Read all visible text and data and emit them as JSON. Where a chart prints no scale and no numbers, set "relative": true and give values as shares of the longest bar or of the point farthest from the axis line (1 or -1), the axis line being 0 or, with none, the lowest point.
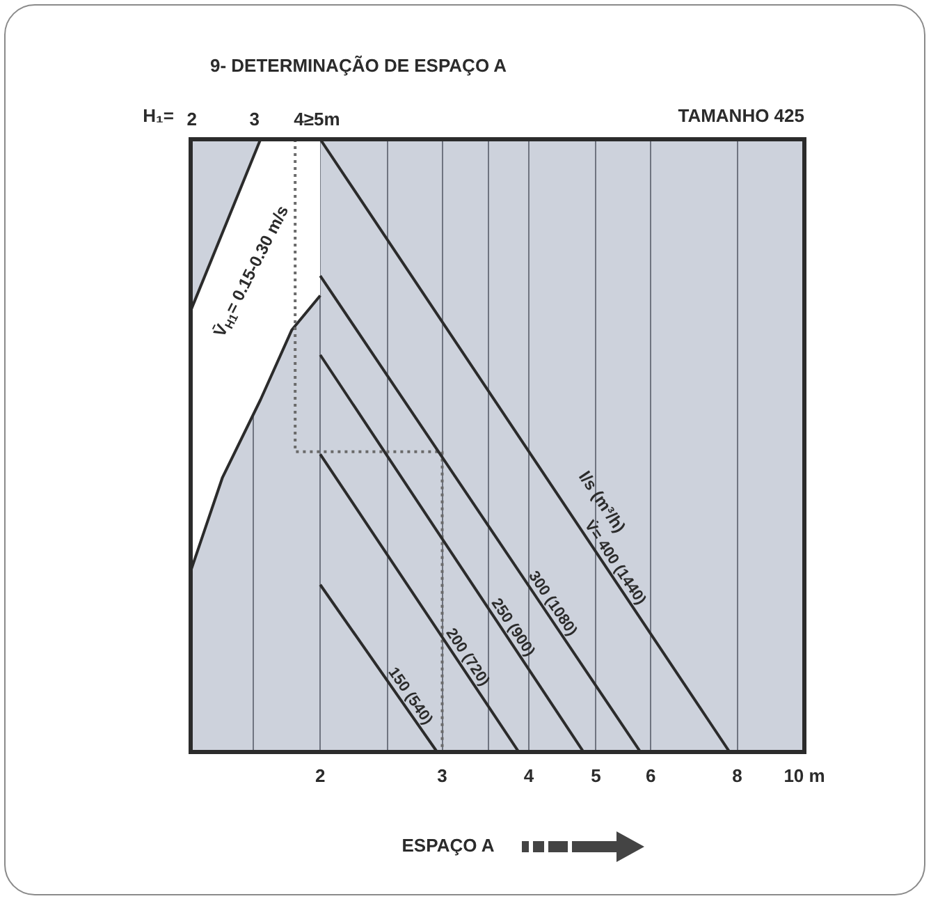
{
  "chart_data": {
    "type": "line",
    "title": "9- DETERMINAÇÃO DE ESPAÇO A",
    "subtitle": "TAMANHO 425",
    "xlabel": "ESPAÇO A",
    "x2label": "H₁=",
    "relative": true,
    "log": "x",
    "grid": "x",
    "legend": false,
    "marker": "none",
    "line_style": "solid",
    "xlim": [
      1.3,
      10
    ],
    "xticks": [
      {
        "value": 1.6,
        "label": null
      },
      2,
      {
        "value": 2.5,
        "label": null
      },
      3,
      {
        "value": 3.5,
        "label": null
      },
      4,
      5,
      6,
      8,
      {
        "value": 10,
        "label": "10 m"
      }
    ],
    "x2lim": [
      1.98,
      11.8
    ],
    "x2ticks": [
      2,
      3,
      {
        "value": 4,
        "label": "4≥5m"
      }
    ],
    "series": [
      {
        "type": "area",
        "color": "#ffffff",
        "x": [
          1.3,
          1.3,
          1.445,
          1.64,
          1.82,
          2,
          2
        ],
        "values": [
          1,
          0.295,
          0.448,
          0.575,
          0.689,
          0.745,
          1
        ]
      },
      {
        "type": "area",
        "color": "#cdd2dc",
        "x": [
          1.3,
          1.64
        ],
        "values": [
          0.72,
          1
        ]
      },
      {
        "type": "line",
        "color": "#6a6a6a",
        "line_style": "dotted",
        "x": [
          1.84,
          1.84,
          3,
          3
        ],
        "values": [
          1,
          0.49,
          0.49,
          0
        ]
      },
      {
        "name": "V̇= 400 (1440)",
        "color": "#2b2b2b",
        "x": [
          2,
          7.8
        ],
        "values": [
          1,
          0
        ]
      },
      {
        "name": "300 (1080)",
        "color": "#2b2b2b",
        "x": [
          2,
          5.8
        ],
        "values": [
          0.777,
          0
        ]
      },
      {
        "name": "250 (900)",
        "color": "#2b2b2b",
        "x": [
          2,
          4.8
        ],
        "values": [
          0.648,
          0
        ]
      },
      {
        "name": "200 (720)",
        "color": "#2b2b2b",
        "x": [
          2,
          3.87
        ],
        "values": [
          0.486,
          0
        ]
      },
      {
        "name": "150 (540)",
        "color": "#2b2b2b",
        "x": [
          2,
          2.95
        ],
        "values": [
          0.273,
          0
        ]
      }
    ],
    "annotations": [
      "V̄$_{H1}$= 0.15-0.30 m/s",
      "l/s (m³/h)"
    ]
  }
}
